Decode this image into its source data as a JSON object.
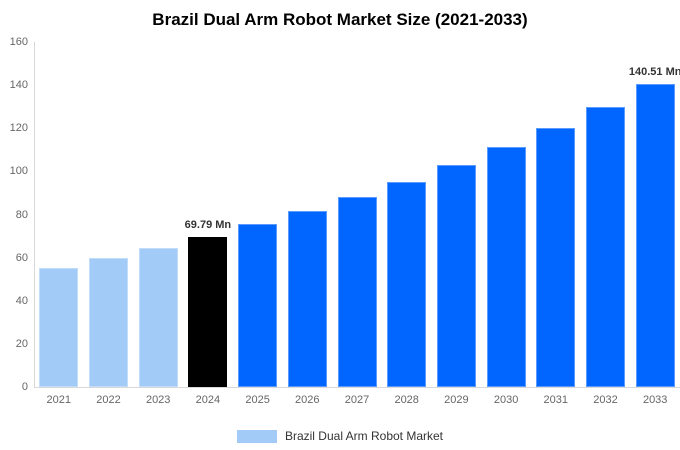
{
  "chart_data": {
    "type": "bar",
    "title": "Brazil Dual Arm Robot Market Size (2021-2033)",
    "categories": [
      "2021",
      "2022",
      "2023",
      "2024",
      "2025",
      "2026",
      "2027",
      "2028",
      "2029",
      "2030",
      "2031",
      "2032",
      "2033"
    ],
    "values": [
      55.27,
      59.74,
      64.57,
      69.79,
      75.43,
      81.53,
      88.12,
      95.24,
      102.94,
      111.26,
      120.25,
      129.97,
      140.51
    ],
    "unit": "Mn",
    "bar_colors": [
      "#a2cbf8",
      "#a2cbf8",
      "#a2cbf8",
      "#000000",
      "#0066ff",
      "#0066ff",
      "#0066ff",
      "#0066ff",
      "#0066ff",
      "#0066ff",
      "#0066ff",
      "#0066ff",
      "#0066ff"
    ],
    "data_labels": [
      {
        "index": 3,
        "text": "69.79 Mn"
      },
      {
        "index": 12,
        "text": "140.51 Mn"
      }
    ],
    "xlabel": "",
    "ylabel": "",
    "ylim": [
      0,
      160
    ],
    "yticks": [
      0,
      20,
      40,
      60,
      80,
      100,
      120,
      140,
      160
    ],
    "grid": false,
    "legend": {
      "position": "bottom",
      "items": [
        {
          "label": "Brazil Dual Arm Robot Market",
          "color": "#a2cbf8"
        }
      ]
    },
    "colors": {
      "historic_bar": "#a2cbf8",
      "current_year_bar": "#000000",
      "forecast_bar": "#0066ff",
      "axis_line": "#d9d9d9",
      "tick_label": "#666666",
      "data_label": "#333333",
      "legend_text": "#333333",
      "title_text": "#000000",
      "background": "#ffffff"
    }
  }
}
